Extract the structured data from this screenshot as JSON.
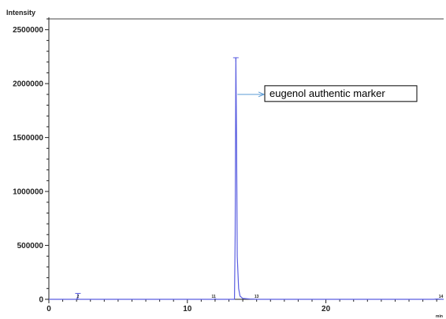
{
  "chart_data": {
    "type": "line",
    "ylabel": "Intensity",
    "xlabel": "min",
    "xlim": [
      0,
      28.5
    ],
    "ylim": [
      0,
      2600000
    ],
    "x_ticks": [
      0,
      10,
      20
    ],
    "x_tick_labels": [
      "0",
      "10",
      "20"
    ],
    "y_ticks": [
      0,
      500000,
      1000000,
      1500000,
      2000000,
      2500000
    ],
    "y_tick_labels": [
      "0",
      "500000",
      "1000000",
      "1500000",
      "2000000",
      "2500000"
    ],
    "grid": false,
    "series": [
      {
        "color": "#5a5ee0",
        "x": [
          0,
          2.0,
          2.05,
          2.1,
          2.2,
          11.9,
          12.0,
          12.1,
          13.0,
          13.4,
          13.45,
          13.5,
          13.55,
          13.6,
          13.7,
          13.8,
          14.0,
          14.5,
          15.0,
          15.2,
          16.0,
          27.8,
          28.0,
          28.5
        ],
        "y": [
          0,
          0,
          12000,
          3000,
          0,
          0,
          5000,
          0,
          0,
          0,
          600000,
          2240000,
          1500000,
          400000,
          100000,
          30000,
          8000,
          3000,
          1000,
          0,
          0,
          0,
          3000,
          0
        ]
      }
    ],
    "peak_markers": [
      {
        "x": 2.1,
        "y": 55000
      },
      {
        "x": 13.5,
        "y": 2240000
      }
    ],
    "small_labels": [
      {
        "x": 2.1,
        "y": 0,
        "text": "2"
      },
      {
        "x": 11.9,
        "y": 0,
        "text": "11"
      },
      {
        "x": 15.0,
        "y": 0,
        "text": "13"
      },
      {
        "x": 28.3,
        "y": 0,
        "text": "14"
      }
    ],
    "annotations": [
      {
        "text": "eugenol authentic marker",
        "arrow_to_x": 13.5,
        "arrow_y": 1900000
      }
    ]
  }
}
